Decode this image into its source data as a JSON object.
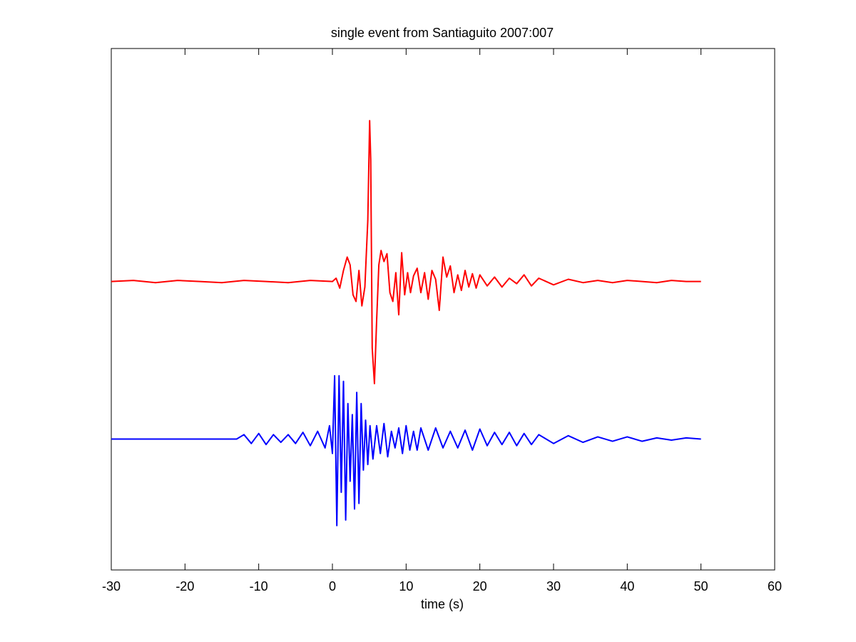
{
  "chart_data": {
    "type": "line",
    "title": "single event from Santiaguito 2007:007",
    "xlabel": "time (s)",
    "ylabel": "",
    "xlim": [
      -30,
      60
    ],
    "ylim": [
      -2.6,
      2.1
    ],
    "xticks": [
      -30,
      -20,
      -10,
      0,
      10,
      20,
      30,
      40,
      50,
      60
    ],
    "xtick_labels": [
      "-30",
      "-20",
      "-10",
      "0",
      "10",
      "20",
      "30",
      "40",
      "50",
      "60"
    ],
    "yticks_shown": false,
    "grid": false,
    "legend": "none",
    "series": [
      {
        "color": "#ff0000",
        "x": [
          -30,
          -27,
          -24,
          -21,
          -18,
          -15,
          -12,
          -9,
          -6,
          -3,
          0,
          0.5,
          1,
          1.5,
          2,
          2.4,
          2.8,
          3.2,
          3.6,
          4,
          4.4,
          4.8,
          5.05,
          5.2,
          5.4,
          5.7,
          6,
          6.3,
          6.6,
          7,
          7.4,
          7.8,
          8.2,
          8.6,
          9,
          9.4,
          9.8,
          10.2,
          10.6,
          11,
          11.5,
          12,
          12.5,
          13,
          13.5,
          14,
          14.5,
          15,
          15.5,
          16,
          16.5,
          17,
          17.5,
          18,
          18.5,
          19,
          19.5,
          20,
          21,
          22,
          23,
          24,
          25,
          26,
          27,
          28,
          30,
          32,
          34,
          36,
          38,
          40,
          42,
          44,
          46,
          48,
          50
        ],
        "y": [
          0,
          0.01,
          -0.01,
          0.01,
          0,
          -0.01,
          0.01,
          0,
          -0.01,
          0.01,
          0,
          0.03,
          -0.06,
          0.1,
          0.22,
          0.15,
          -0.12,
          -0.18,
          0.1,
          -0.22,
          -0.05,
          0.55,
          1.45,
          1.1,
          -0.6,
          -0.92,
          -0.35,
          0.15,
          0.28,
          0.18,
          0.25,
          -0.1,
          -0.18,
          0.08,
          -0.3,
          0.26,
          -0.12,
          0.08,
          -0.1,
          0.05,
          0.12,
          -0.1,
          0.08,
          -0.16,
          0.1,
          0.02,
          -0.26,
          0.22,
          0.04,
          0.14,
          -0.1,
          0.06,
          -0.08,
          0.1,
          -0.05,
          0.07,
          -0.06,
          0.06,
          -0.04,
          0.04,
          -0.05,
          0.03,
          -0.02,
          0.06,
          -0.04,
          0.03,
          -0.03,
          0.02,
          -0.01,
          0.01,
          -0.01,
          0.01,
          0,
          -0.01,
          0.01,
          0,
          0
        ]
      },
      {
        "color": "#0000ff",
        "x": [
          -30,
          -25,
          -20,
          -15,
          -13,
          -12,
          -11,
          -10,
          -9,
          -8,
          -7,
          -6,
          -5,
          -4,
          -3,
          -2,
          -1,
          -0.4,
          0,
          0.3,
          0.6,
          0.9,
          1.2,
          1.5,
          1.8,
          2.1,
          2.4,
          2.7,
          3,
          3.3,
          3.6,
          3.9,
          4.2,
          4.5,
          4.8,
          5.1,
          5.5,
          6,
          6.5,
          7,
          7.5,
          8,
          8.5,
          9,
          9.5,
          10,
          10.5,
          11,
          11.5,
          12,
          13,
          14,
          15,
          16,
          17,
          18,
          19,
          20,
          21,
          22,
          23,
          24,
          25,
          26,
          27,
          28,
          30,
          32,
          34,
          36,
          38,
          40,
          42,
          44,
          46,
          48,
          50
        ],
        "y": [
          -1.42,
          -1.42,
          -1.42,
          -1.42,
          -1.42,
          -1.38,
          -1.46,
          -1.37,
          -1.47,
          -1.38,
          -1.45,
          -1.38,
          -1.46,
          -1.36,
          -1.48,
          -1.35,
          -1.5,
          -1.3,
          -1.55,
          -0.85,
          -2.2,
          -0.85,
          -1.9,
          -0.9,
          -2.15,
          -1.1,
          -1.8,
          -1.2,
          -2.05,
          -1.0,
          -2.0,
          -1.1,
          -1.7,
          -1.25,
          -1.65,
          -1.3,
          -1.6,
          -1.3,
          -1.55,
          -1.28,
          -1.58,
          -1.35,
          -1.5,
          -1.32,
          -1.55,
          -1.3,
          -1.52,
          -1.35,
          -1.52,
          -1.32,
          -1.52,
          -1.32,
          -1.5,
          -1.35,
          -1.5,
          -1.34,
          -1.52,
          -1.33,
          -1.48,
          -1.36,
          -1.47,
          -1.36,
          -1.48,
          -1.37,
          -1.47,
          -1.38,
          -1.46,
          -1.39,
          -1.45,
          -1.4,
          -1.44,
          -1.4,
          -1.44,
          -1.41,
          -1.43,
          -1.41,
          -1.42
        ]
      }
    ]
  }
}
